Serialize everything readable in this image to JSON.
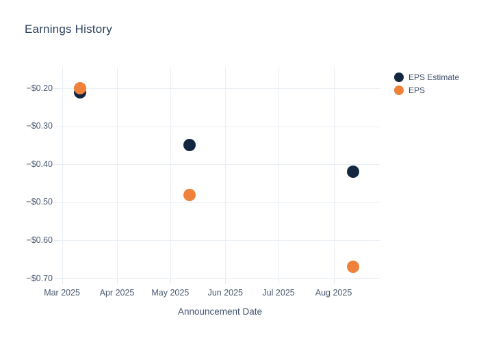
{
  "chart_data": {
    "type": "scatter",
    "title": "Earnings History",
    "xlabel": "Announcement Date",
    "ylabel": "",
    "grid": true,
    "legend_position": "right",
    "x_ticks": [
      {
        "label": "Mar 2025",
        "date": "2025-03-01"
      },
      {
        "label": "Apr 2025",
        "date": "2025-04-01"
      },
      {
        "label": "May 2025",
        "date": "2025-05-01"
      },
      {
        "label": "Jun 2025",
        "date": "2025-06-01"
      },
      {
        "label": "Jul 2025",
        "date": "2025-07-01"
      },
      {
        "label": "Aug 2025",
        "date": "2025-08-01"
      }
    ],
    "xlim": [
      "2025-02-28",
      "2025-08-27"
    ],
    "y_ticks": [
      {
        "label": "−$0.20",
        "value": -0.2
      },
      {
        "label": "−$0.30",
        "value": -0.3
      },
      {
        "label": "−$0.40",
        "value": -0.4
      },
      {
        "label": "−$0.50",
        "value": -0.5
      },
      {
        "label": "−$0.60",
        "value": -0.6
      },
      {
        "label": "−$0.70",
        "value": -0.7
      }
    ],
    "ylim": [
      -0.7,
      -0.144
    ],
    "series": [
      {
        "name": "EPS Estimate",
        "color": "#132740",
        "points": [
          {
            "date": "2025-03-11",
            "value": -0.21
          },
          {
            "date": "2025-05-12",
            "value": -0.35
          },
          {
            "date": "2025-08-12",
            "value": -0.42
          }
        ]
      },
      {
        "name": "EPS",
        "color": "#f0813a",
        "points": [
          {
            "date": "2025-03-11",
            "value": -0.2
          },
          {
            "date": "2025-05-12",
            "value": -0.48
          },
          {
            "date": "2025-08-12",
            "value": -0.67
          }
        ]
      }
    ]
  },
  "legend": {
    "items": [
      {
        "label": "EPS Estimate",
        "color": "#132740"
      },
      {
        "label": "EPS",
        "color": "#f0813a"
      }
    ]
  },
  "colors": {
    "grid": "#e8eef4",
    "tick": "#e4eaf1",
    "title": "#2c3f58",
    "tick_label": "#47566e",
    "axis_title": "#42526b",
    "background": "#ffffff"
  }
}
